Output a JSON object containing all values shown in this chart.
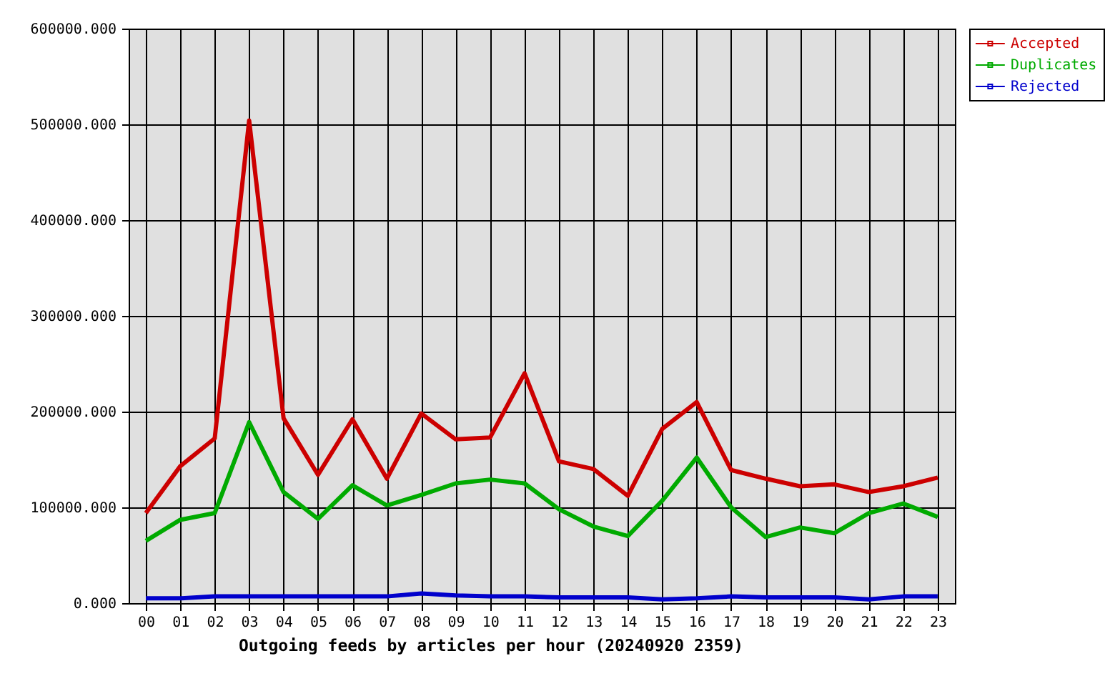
{
  "chart_data": {
    "type": "line",
    "xlabel": "Outgoing feeds by articles per hour (20240920 2359)",
    "categories": [
      "00",
      "01",
      "02",
      "03",
      "04",
      "05",
      "06",
      "07",
      "08",
      "09",
      "10",
      "11",
      "12",
      "13",
      "14",
      "15",
      "16",
      "17",
      "18",
      "19",
      "20",
      "21",
      "22",
      "23"
    ],
    "series": [
      {
        "name": "Accepted",
        "color": "#cc0000",
        "values": [
          94000,
          143000,
          172000,
          504000,
          193000,
          134000,
          192000,
          130000,
          198000,
          171000,
          173000,
          240000,
          148000,
          140000,
          112000,
          182000,
          210000,
          139000,
          130000,
          122000,
          124000,
          116000,
          122000,
          131000
        ]
      },
      {
        "name": "Duplicates",
        "color": "#00aa00",
        "values": [
          65000,
          87000,
          94000,
          189000,
          116000,
          88000,
          123000,
          102000,
          113000,
          125000,
          129000,
          125000,
          98000,
          80000,
          70000,
          107000,
          152000,
          100000,
          69000,
          79000,
          73000,
          94000,
          104000,
          90000
        ]
      },
      {
        "name": "Rejected",
        "color": "#0000cc",
        "values": [
          5000,
          5000,
          7000,
          7000,
          7000,
          7000,
          7000,
          7000,
          10000,
          8000,
          7000,
          7000,
          6000,
          6000,
          6000,
          4000,
          5000,
          7000,
          6000,
          6000,
          6000,
          4000,
          7000,
          7000
        ]
      }
    ],
    "ylim": [
      0,
      600000
    ],
    "yticks": [
      {
        "value": 0,
        "label": "0.000"
      },
      {
        "value": 100000,
        "label": "100000.000"
      },
      {
        "value": 200000,
        "label": "200000.000"
      },
      {
        "value": 300000,
        "label": "300000.000"
      },
      {
        "value": 400000,
        "label": "400000.000"
      },
      {
        "value": 500000,
        "label": "500000.000"
      },
      {
        "value": 600000,
        "label": "600000.000"
      }
    ],
    "grid": true,
    "legend": "top right"
  }
}
